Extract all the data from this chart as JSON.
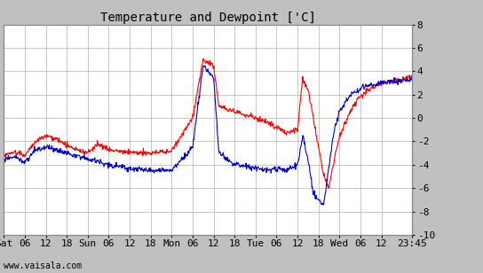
{
  "title": "Temperature and Dewpoint ['C]",
  "ylim": [
    -10,
    8
  ],
  "yticks": [
    -10,
    -8,
    -6,
    -4,
    -2,
    0,
    2,
    4,
    6,
    8
  ],
  "x_tick_labels": [
    "Sat",
    "06",
    "12",
    "18",
    "Sun",
    "06",
    "12",
    "18",
    "Mon",
    "06",
    "12",
    "18",
    "Tue",
    "06",
    "12",
    "18",
    "Wed",
    "06",
    "12",
    "23:45"
  ],
  "bg_color": "#c0c0c0",
  "plot_bg_color": "#ffffff",
  "grid_color": "#b0b0b0",
  "temp_color": "#ff0000",
  "dewp_color": "#0000cc",
  "watermark": "www.vaisala.com",
  "title_fontsize": 10,
  "tick_fontsize": 8
}
